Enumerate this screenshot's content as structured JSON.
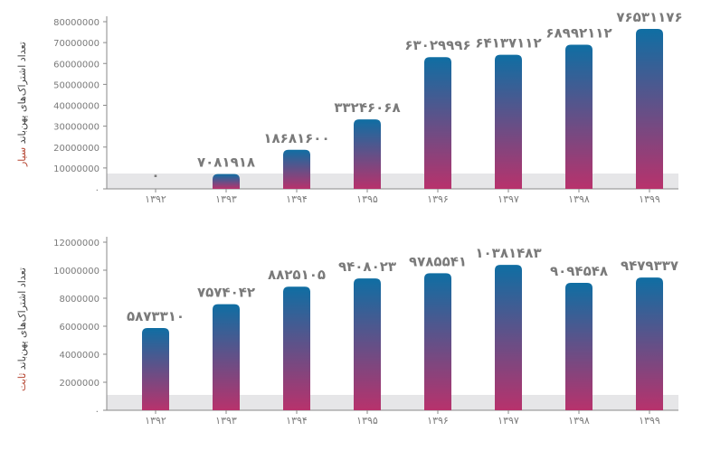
{
  "colors": {
    "bar_top": "#0f6ea3",
    "bar_bottom": "#b8326c",
    "band": "#e6e6e8",
    "axis": "#8a8a8a",
    "text": "#7a7a7a"
  },
  "chart_data": [
    {
      "type": "bar",
      "ylabel_main": "تعداد اشتراک‌های پهن‌باند",
      "ylabel_accent": "سیار",
      "categories": [
        "۱۳۹۲",
        "۱۳۹۳",
        "۱۳۹۴",
        "۱۳۹۵",
        "۱۳۹۶",
        "۱۳۹۷",
        "۱۳۹۸",
        "۱۳۹۹"
      ],
      "values": [
        0,
        7081918,
        18681600,
        33246068,
        63029996,
        64137112,
        68992112,
        76531176
      ],
      "data_labels": [
        "۰",
        "۷۰۸۱۹۱۸",
        "۱۸۶۸۱۶۰۰",
        "۳۳۲۴۶۰۶۸",
        "۶۳۰۲۹۹۹۶",
        "۶۴۱۳۷۱۱۲",
        "۶۸۹۹۲۱۱۲",
        "۷۶۵۳۱۱۷۶"
      ],
      "ylim": [
        0,
        80000000
      ],
      "yticks": [
        "۰",
        "10000000",
        "20000000",
        "30000000",
        "40000000",
        "50000000",
        "60000000",
        "70000000",
        "80000000"
      ],
      "ytick_values": [
        0,
        10000000,
        20000000,
        30000000,
        40000000,
        50000000,
        60000000,
        70000000,
        80000000
      ],
      "grid": false
    },
    {
      "type": "bar",
      "ylabel_main": "تعداد اشتراک‌های پهن‌باند",
      "ylabel_accent": "ثابت",
      "categories": [
        "۱۳۹۲",
        "۱۳۹۳",
        "۱۳۹۴",
        "۱۳۹۵",
        "۱۳۹۶",
        "۱۳۹۷",
        "۱۳۹۸",
        "۱۳۹۹"
      ],
      "values": [
        5873310,
        7574042,
        8825105,
        9408023,
        9785541,
        10381483,
        9094548,
        9479337
      ],
      "data_labels": [
        "۵۸۷۳۳۱۰",
        "۷۵۷۴۰۴۲",
        "۸۸۲۵۱۰۵",
        "۹۴۰۸۰۲۳",
        "۹۷۸۵۵۴۱",
        "۱۰۳۸۱۴۸۳",
        "۹۰۹۴۵۴۸",
        "۹۴۷۹۳۳۷"
      ],
      "ylim": [
        0,
        12000000
      ],
      "yticks": [
        "۰",
        "2000000",
        "4000000",
        "6000000",
        "8000000",
        "10000000",
        "12000000"
      ],
      "ytick_values": [
        0,
        2000000,
        4000000,
        6000000,
        8000000,
        10000000,
        12000000
      ],
      "grid": false
    }
  ]
}
